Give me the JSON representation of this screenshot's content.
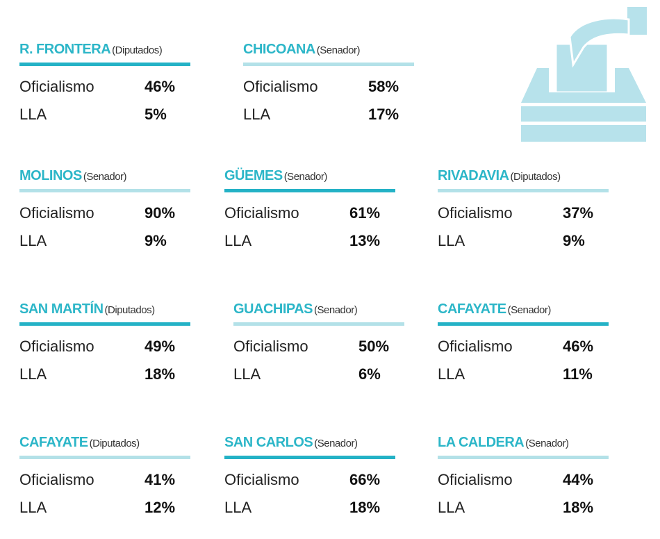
{
  "blocks": [
    {
      "name": "R. FRONTERA",
      "chamber": "(Diputados)",
      "rows": [
        {
          "label": "Oficialismo",
          "value": "46%"
        },
        {
          "label": "LLA",
          "value": "5%"
        }
      ]
    },
    {
      "name": "CHICOANA",
      "chamber": "(Senador)",
      "rows": [
        {
          "label": "Oficialismo",
          "value": "58%"
        },
        {
          "label": "LLA",
          "value": "17%"
        }
      ]
    },
    {
      "name": "MOLINOS",
      "chamber": "(Senador)",
      "rows": [
        {
          "label": "Oficialismo",
          "value": "90%"
        },
        {
          "label": "LLA",
          "value": "9%"
        }
      ]
    },
    {
      "name": "GÜEMES",
      "chamber": "(Senador)",
      "rows": [
        {
          "label": "Oficialismo",
          "value": "61%"
        },
        {
          "label": "LLA",
          "value": "13%"
        }
      ]
    },
    {
      "name": "RIVADAVIA",
      "chamber": "(Diputados)",
      "rows": [
        {
          "label": "Oficialismo",
          "value": "37%"
        },
        {
          "label": "LLA",
          "value": "9%"
        }
      ]
    },
    {
      "name": "SAN MARTÍN",
      "chamber": "(Diputados)",
      "rows": [
        {
          "label": "Oficialismo",
          "value": "49%"
        },
        {
          "label": "LLA",
          "value": "18%"
        }
      ]
    },
    {
      "name": "GUACHIPAS",
      "chamber": "(Senador)",
      "rows": [
        {
          "label": "Oficialismo",
          "value": "50%"
        },
        {
          "label": "LLA",
          "value": "6%"
        }
      ]
    },
    {
      "name": "CAFAYATE",
      "chamber": "(Senador)",
      "rows": [
        {
          "label": "Oficialismo",
          "value": "46%"
        },
        {
          "label": "LLA",
          "value": "11%"
        }
      ]
    },
    {
      "name": "CAFAYATE",
      "chamber": "(Diputados)",
      "rows": [
        {
          "label": "Oficialismo",
          "value": "41%"
        },
        {
          "label": "LLA",
          "value": "12%"
        }
      ]
    },
    {
      "name": "SAN CARLOS",
      "chamber": "(Senador)",
      "rows": [
        {
          "label": "Oficialismo",
          "value": "66%"
        },
        {
          "label": "LLA",
          "value": "18%"
        }
      ]
    },
    {
      "name": "LA CALDERA",
      "chamber": "(Senador)",
      "rows": [
        {
          "label": "Oficialismo",
          "value": "44%"
        },
        {
          "label": "LLA",
          "value": "18%"
        }
      ]
    }
  ]
}
